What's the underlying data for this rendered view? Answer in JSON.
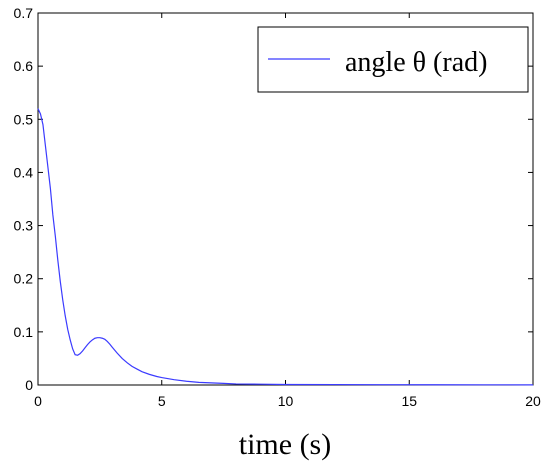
{
  "chart_data": {
    "type": "line",
    "xlabel": "time (s)",
    "ylabel": "",
    "xlim": [
      0,
      20
    ],
    "ylim": [
      0,
      0.7
    ],
    "x_ticks": [
      "0",
      "5",
      "10",
      "15",
      "20"
    ],
    "y_ticks": [
      "0",
      "0.1",
      "0.2",
      "0.3",
      "0.4",
      "0.5",
      "0.6",
      "0.7"
    ],
    "grid": false,
    "legend_position": "top-right",
    "series": [
      {
        "name": "angle θ (rad)",
        "color": "#3b3bff",
        "x": [
          0,
          0.1,
          0.2,
          0.3,
          0.4,
          0.5,
          0.6,
          0.7,
          0.8,
          0.9,
          1.0,
          1.1,
          1.2,
          1.3,
          1.4,
          1.5,
          1.6,
          1.7,
          1.8,
          1.9,
          2.0,
          2.1,
          2.2,
          2.3,
          2.4,
          2.5,
          2.6,
          2.7,
          2.8,
          2.9,
          3.0,
          3.2,
          3.4,
          3.6,
          3.8,
          4.0,
          4.2,
          4.5,
          4.8,
          5.0,
          5.5,
          6.0,
          6.5,
          7.0,
          7.5,
          8.0,
          9.0,
          10,
          12,
          14,
          16,
          18,
          20
        ],
        "y": [
          0.52,
          0.51,
          0.49,
          0.45,
          0.41,
          0.37,
          0.32,
          0.28,
          0.235,
          0.195,
          0.16,
          0.13,
          0.105,
          0.085,
          0.068,
          0.057,
          0.056,
          0.059,
          0.064,
          0.07,
          0.076,
          0.081,
          0.085,
          0.088,
          0.089,
          0.089,
          0.088,
          0.086,
          0.082,
          0.077,
          0.071,
          0.06,
          0.05,
          0.042,
          0.035,
          0.03,
          0.025,
          0.02,
          0.016,
          0.014,
          0.01,
          0.007,
          0.005,
          0.004,
          0.003,
          0.002,
          0.0015,
          0.001,
          0.0008,
          0.0006,
          0.0005,
          0.0004,
          0.0003
        ]
      }
    ]
  }
}
